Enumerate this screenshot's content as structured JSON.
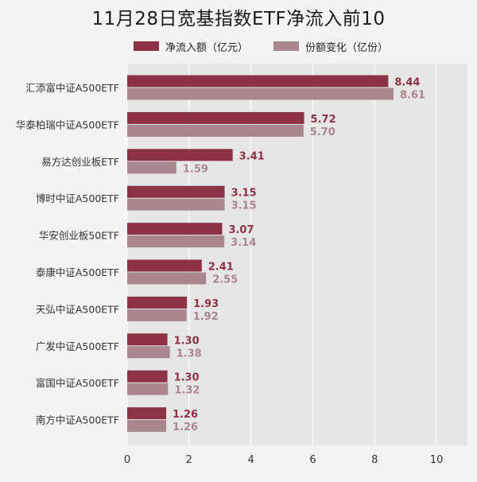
{
  "colors": {
    "net_inflow": "#8c3347",
    "share_change": "#a98690",
    "net_inflow_label": "#8c3347",
    "share_change_label": "#a98690",
    "plot_bg": "#e6e6e6",
    "grid": "#ffffff"
  },
  "chart_data": {
    "type": "bar",
    "orientation": "horizontal",
    "title": "11月28日宽基指数ETF净流入前10",
    "legend_position": "top",
    "categories": [
      "汇添富中证A500ETF",
      "华泰柏瑞中证A500ETF",
      "易方达创业板ETF",
      "博时中证A500ETF",
      "华安创业板50ETF",
      "泰康中证A500ETF",
      "天弘中证A500ETF",
      "广发中证A500ETF",
      "富国中证A500ETF",
      "南方中证A500ETF"
    ],
    "series": [
      {
        "name": "净流入额（亿元）",
        "values": [
          8.44,
          5.72,
          3.41,
          3.15,
          3.07,
          2.41,
          1.93,
          1.3,
          1.3,
          1.26
        ]
      },
      {
        "name": "份额变化（亿份）",
        "values": [
          8.61,
          5.7,
          1.59,
          3.15,
          3.14,
          2.55,
          1.92,
          1.38,
          1.32,
          1.26
        ]
      }
    ],
    "xlim": [
      0,
      11
    ],
    "xticks": [
      0,
      2,
      4,
      6,
      8,
      10
    ],
    "grid": true
  }
}
